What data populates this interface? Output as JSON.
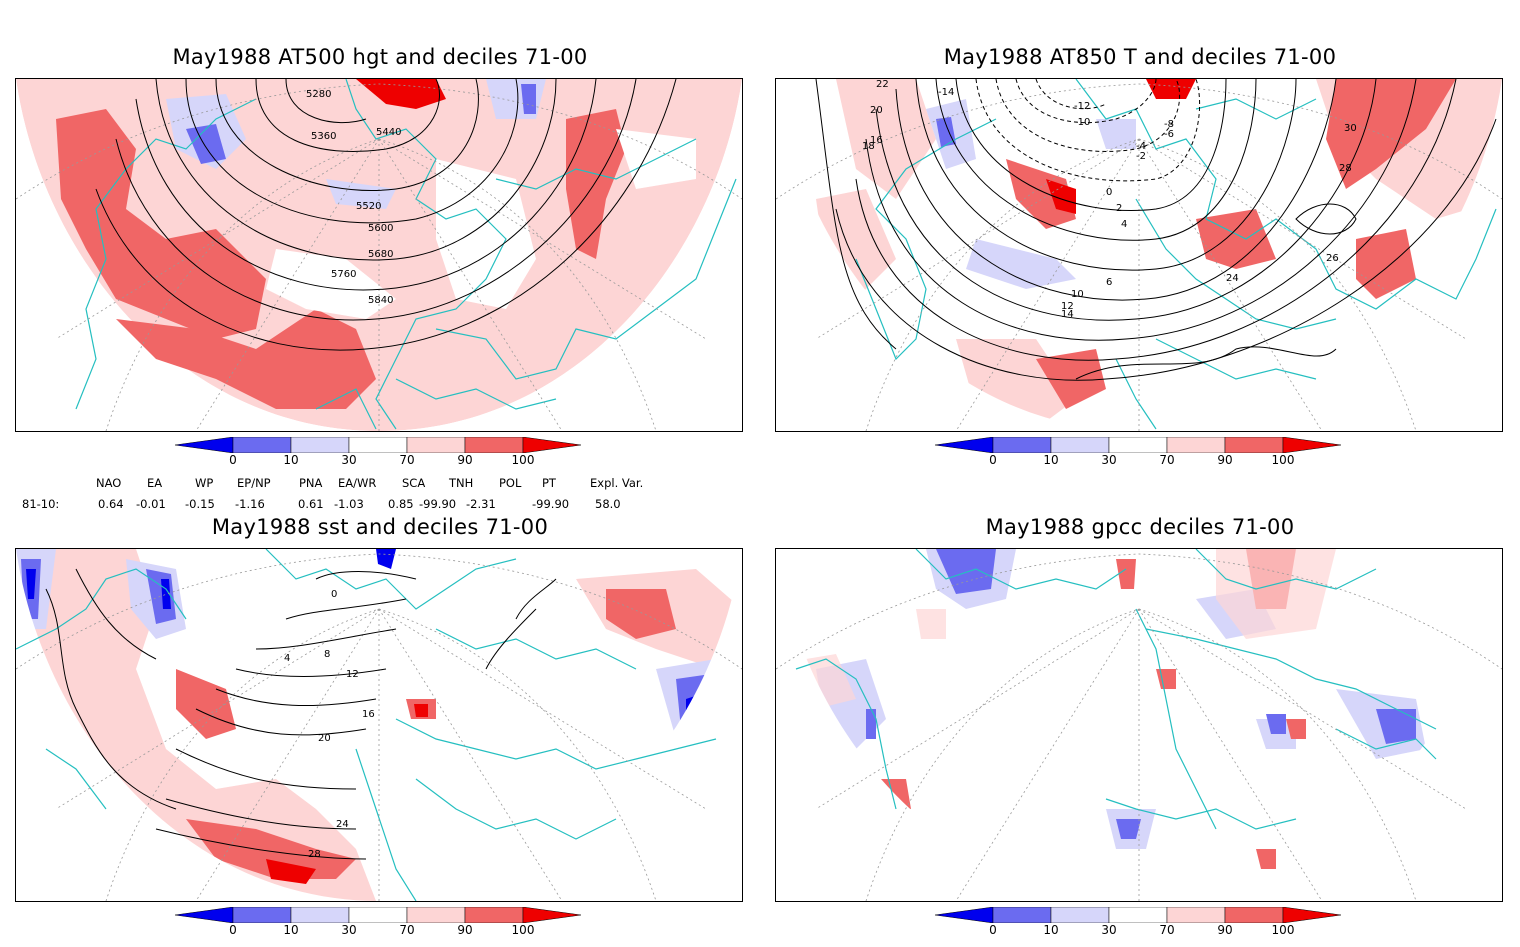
{
  "panels": [
    {
      "title": "May1988 AT500 hgt and deciles 71-00",
      "contour_labels": [
        "5280",
        "5360",
        "5440",
        "5520",
        "5600",
        "5680",
        "5760",
        "5840"
      ]
    },
    {
      "title": "May1988 AT850 T and deciles 71-00",
      "contour_labels": [
        "-14",
        "-12",
        "-10",
        "-8",
        "-6",
        "-4",
        "-2",
        "0",
        "2",
        "4",
        "6",
        "10",
        "12",
        "14",
        "16",
        "18",
        "20",
        "22",
        "24",
        "26",
        "28",
        "30"
      ]
    },
    {
      "title": "May1988 sst and deciles 71-00",
      "contour_labels": [
        "0",
        "4",
        "8",
        "12",
        "16",
        "20",
        "24",
        "28"
      ]
    },
    {
      "title": "May1988 gpcc deciles 71-00",
      "contour_labels": []
    }
  ],
  "colorbar": {
    "ticks": [
      "0",
      "10",
      "30",
      "70",
      "90",
      "100"
    ],
    "colors": {
      "c0": "#0000ee",
      "c1": "#6b6bf0",
      "c2": "#d6d6fa",
      "c3": "#ffffff",
      "c4": "#fdd5d5",
      "c5": "#f06666",
      "c6": "#ee0000"
    }
  },
  "indices": {
    "headers": [
      "NAO",
      "EA",
      "WP",
      "EP/NP",
      "PNA",
      "EA/WR",
      "SCA",
      "TNH",
      "POL",
      "PT",
      "Expl. Var."
    ],
    "row_label": "81-10:",
    "values": [
      "0.64",
      "-0.01",
      "-0.15",
      "-1.16",
      "0.61",
      "-1.03",
      "0.85",
      "-99.90",
      "-2.31",
      "-99.90",
      "58.0"
    ]
  },
  "colors": {
    "coast": "#25bfc0",
    "grid": "#999999"
  }
}
